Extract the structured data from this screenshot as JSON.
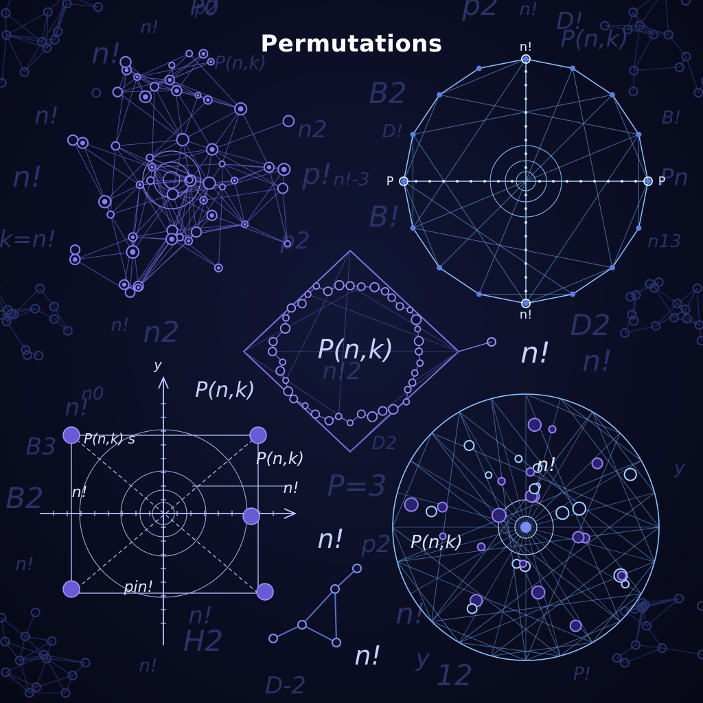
{
  "title": "Permutations",
  "colors": {
    "background": "#0b0e24",
    "graph_purple": "#7a6ee0",
    "graph_blue": "#8fc3ff",
    "label_light": "#c9d2ff",
    "background_symbols": "#2c3266"
  },
  "labels": {
    "center_formula": "P(n,k)",
    "n_factorial": "n!",
    "axes_formula": "P(n,k)",
    "axes_formula_2": "P(n,k)",
    "axes_point_label": "P(n,k) s",
    "axes_y": "y",
    "axes_bottom": "pin!",
    "axes_left_mid": "n!",
    "axes_right_mid": "n!",
    "sphere_formula": "P(n,k)",
    "sphere_nfact": "n!",
    "wheel_top": "n!",
    "wheel_bottom": "n!",
    "wheel_left": "P",
    "wheel_right": "P",
    "small_nfact_1": "n!",
    "small_nfact_2": "n!"
  },
  "background_symbols": [
    "n!",
    "P0",
    "p2",
    "n!",
    "D!",
    "n!",
    "P(n,k)",
    "n!",
    "B2",
    "D!",
    "n2",
    "p!",
    "n!-3",
    "p2",
    "B!",
    "n13",
    "Pk=n!",
    "n2",
    "n!",
    "n!2",
    "D2",
    "n0",
    "B3",
    "B2",
    "n!",
    "n!",
    "P=3",
    "y",
    "n!",
    "H2",
    "n!",
    "D-2",
    "12",
    "P!",
    "p2",
    "n!",
    "B!",
    "P(n,k)",
    "n!",
    "p2",
    "Pn",
    "n!",
    "D2",
    "y"
  ]
}
